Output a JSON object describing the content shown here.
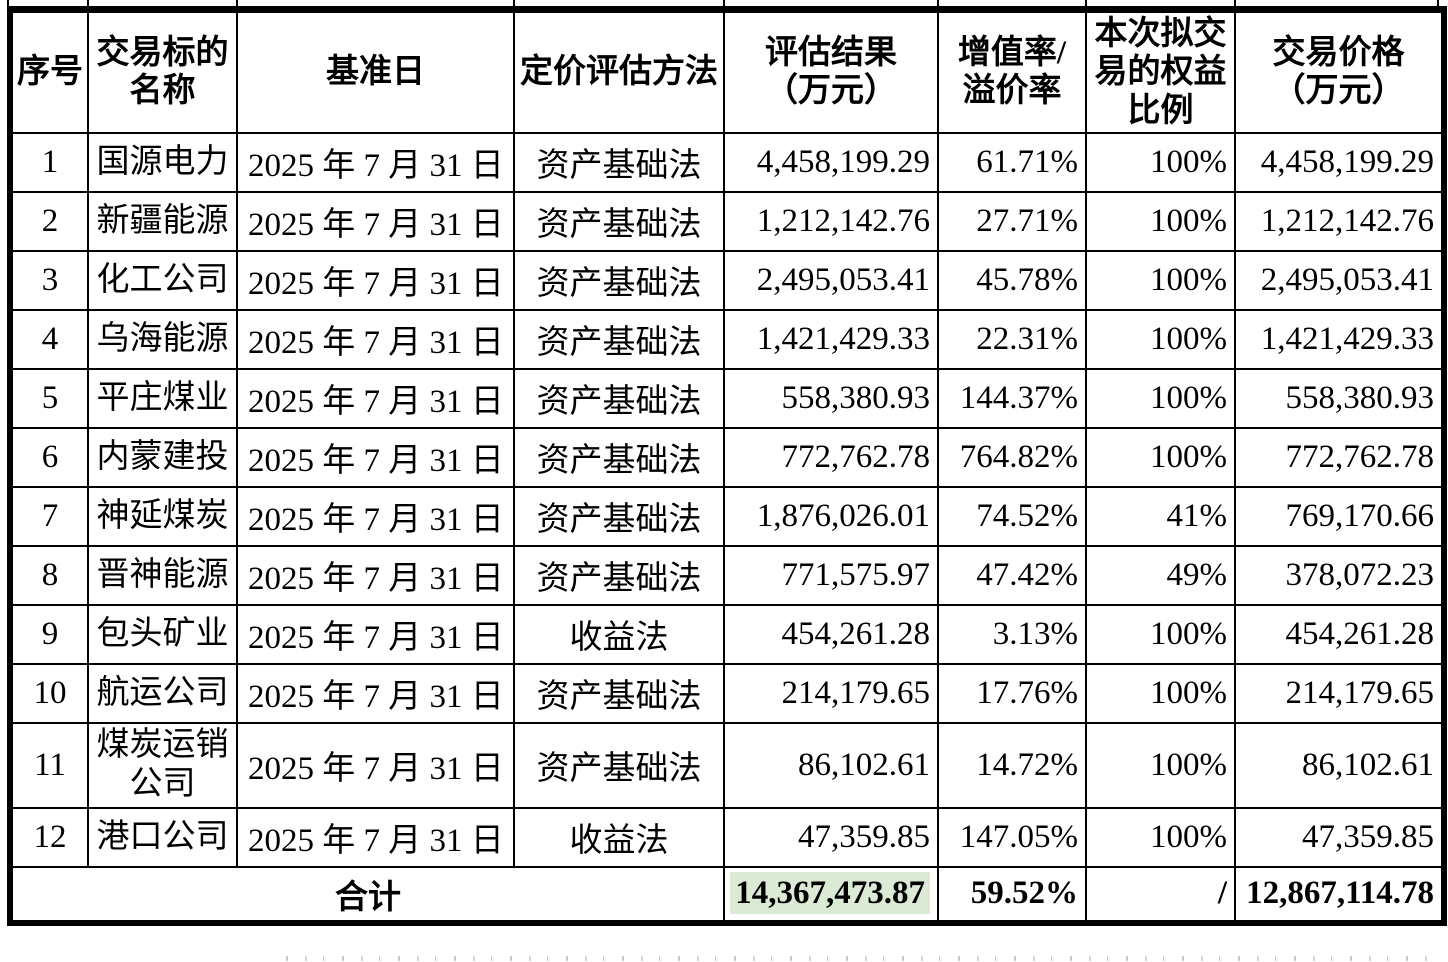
{
  "table": {
    "highlight_color": "#dbead5",
    "columns": [
      {
        "key": "no",
        "label": "序号",
        "lines": [
          "序号"
        ]
      },
      {
        "key": "name",
        "label": "交易标的名称",
        "lines": [
          "交易标的",
          "名称"
        ]
      },
      {
        "key": "date",
        "label": "基准日",
        "lines": [
          "基准日"
        ]
      },
      {
        "key": "method",
        "label": "定价评估方法",
        "lines": [
          "定价评估方法"
        ]
      },
      {
        "key": "result",
        "label": "评估结果（万元）",
        "lines": [
          "评估结果",
          "（万元）"
        ]
      },
      {
        "key": "rate",
        "label": "增值率/溢价率",
        "lines": [
          "增值率/",
          "溢价率"
        ]
      },
      {
        "key": "equity",
        "label": "本次拟交易的权益比例",
        "lines": [
          "本次拟交",
          "易的权益",
          "比例"
        ]
      },
      {
        "key": "price",
        "label": "交易价格（万元）",
        "lines": [
          "交易价格",
          "（万元）"
        ]
      }
    ],
    "rows": [
      {
        "no": "1",
        "name": "国源电力",
        "date": "2025 年 7 月 31 日",
        "method": "资产基础法",
        "result": "4,458,199.29",
        "rate": "61.71%",
        "equity": "100%",
        "price": "4,458,199.29"
      },
      {
        "no": "2",
        "name": "新疆能源",
        "date": "2025 年 7 月 31 日",
        "method": "资产基础法",
        "result": "1,212,142.76",
        "rate": "27.71%",
        "equity": "100%",
        "price": "1,212,142.76"
      },
      {
        "no": "3",
        "name": "化工公司",
        "date": "2025 年 7 月 31 日",
        "method": "资产基础法",
        "result": "2,495,053.41",
        "rate": "45.78%",
        "equity": "100%",
        "price": "2,495,053.41"
      },
      {
        "no": "4",
        "name": "乌海能源",
        "date": "2025 年 7 月 31 日",
        "method": "资产基础法",
        "result": "1,421,429.33",
        "rate": "22.31%",
        "equity": "100%",
        "price": "1,421,429.33"
      },
      {
        "no": "5",
        "name": "平庄煤业",
        "date": "2025 年 7 月 31 日",
        "method": "资产基础法",
        "result": "558,380.93",
        "rate": "144.37%",
        "equity": "100%",
        "price": "558,380.93"
      },
      {
        "no": "6",
        "name": "内蒙建投",
        "date": "2025 年 7 月 31 日",
        "method": "资产基础法",
        "result": "772,762.78",
        "rate": "764.82%",
        "equity": "100%",
        "price": "772,762.78"
      },
      {
        "no": "7",
        "name": "神延煤炭",
        "date": "2025 年 7 月 31 日",
        "method": "资产基础法",
        "result": "1,876,026.01",
        "rate": "74.52%",
        "equity": "41%",
        "price": "769,170.66"
      },
      {
        "no": "8",
        "name": "晋神能源",
        "date": "2025 年 7 月 31 日",
        "method": "资产基础法",
        "result": "771,575.97",
        "rate": "47.42%",
        "equity": "49%",
        "price": "378,072.23"
      },
      {
        "no": "9",
        "name": "包头矿业",
        "date": "2025 年 7 月 31 日",
        "method": "收益法",
        "result": "454,261.28",
        "rate": "3.13%",
        "equity": "100%",
        "price": "454,261.28"
      },
      {
        "no": "10",
        "name": "航运公司",
        "date": "2025 年 7 月 31 日",
        "method": "资产基础法",
        "result": "214,179.65",
        "rate": "17.76%",
        "equity": "100%",
        "price": "214,179.65"
      },
      {
        "no": "11",
        "name": "煤炭运销公司",
        "date": "2025 年 7 月 31 日",
        "method": "资产基础法",
        "result": "86,102.61",
        "rate": "14.72%",
        "equity": "100%",
        "price": "86,102.61"
      },
      {
        "no": "12",
        "name": "港口公司",
        "date": "2025 年 7 月 31 日",
        "method": "收益法",
        "result": "47,359.85",
        "rate": "147.05%",
        "equity": "100%",
        "price": "47,359.85"
      }
    ],
    "total": {
      "label": "合计",
      "result": "14,367,473.87",
      "rate": "59.52%",
      "equity": "/",
      "price": "12,867,114.78"
    }
  }
}
